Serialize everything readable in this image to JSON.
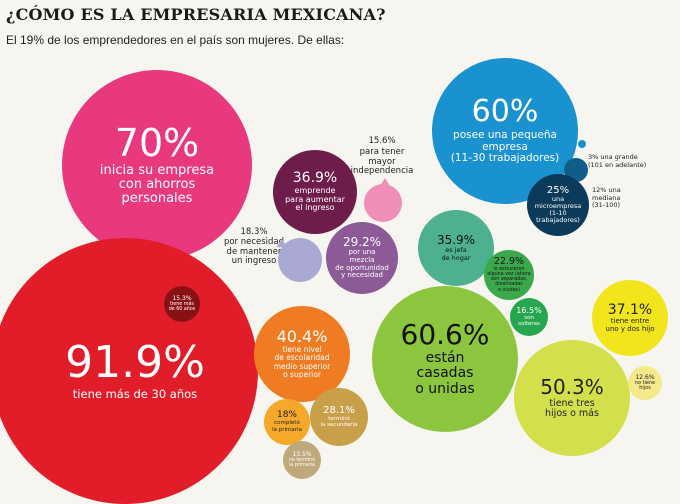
{
  "title": "¿CÓMO ES LA EMPRESARIA MEXICANA?",
  "subtitle": "El 19% de los emprendedores en el país son mujeres. De ellas:",
  "bubbles": {
    "ahorros": {
      "pct": "70%",
      "label": "inicia su empresa\ncon ahorros\npersonales",
      "color": "#e8387e"
    },
    "emprende": {
      "pct": "36.9%",
      "label": "emprende\npara aumentar\nel ingreso",
      "color": "#6e1d4a"
    },
    "independencia": {
      "pct": "15.6%",
      "label": "para tener\nmayor\nindependencia",
      "color": "#ef8fb7"
    },
    "necesidad": {
      "pct": "18.3%",
      "label": "por necesidad\nde mantener\nun ingreso",
      "color": "#a9a8d2"
    },
    "mezcla": {
      "pct": "29.2%",
      "label": "por una\nmezcla\nde oportunidad\ny necesidad",
      "color": "#8b5a97"
    },
    "pequena": {
      "pct": "60%",
      "label": "posee una pequeña\nempresa\n(11-30 trabajadores)",
      "color": "#1992cf"
    },
    "grande": {
      "pct": "3%",
      "label": "3% una grande\n(101 en adelante)",
      "color": "#1d8fc8"
    },
    "mediana": {
      "pct": "12%",
      "label": "12% una\nmediana\n(31-100)",
      "color": "#0f5e8a"
    },
    "micro": {
      "pct": "25%",
      "label": "una\nmicroempresa\n(1-10\ntrabajadores)",
      "color": "#0c3a5a"
    },
    "jefa": {
      "pct": "35.9%",
      "label": "es jefa\nde hogar",
      "color": "#4db18f"
    },
    "separadas": {
      "pct": "22.9%",
      "label": "lo estuvieron\nalguna vez (ahora\nson separadas,\ndivorciadas\no viudas)",
      "color": "#3ca84c"
    },
    "solteras": {
      "pct": "16.5%",
      "label": "son\nsolteras",
      "color": "#27a650"
    },
    "casadas": {
      "pct": "60.6%",
      "label": "están\ncasadas\no unidas",
      "color": "#8cc63f"
    },
    "mayor30": {
      "pct": "91.9%",
      "label": "tiene más de 30 años",
      "color": "#e21d2a"
    },
    "mayor60": {
      "pct": "15.3%",
      "label": "tiene más\nde 60 años",
      "color": "#8a1113"
    },
    "escolaridad": {
      "pct": "40.4%",
      "label": "tiene nivel\nde escolaridad\nmedio superior\no superior",
      "color": "#ef7c22"
    },
    "primaria": {
      "pct": "18%",
      "label": "completó\nla primaria",
      "color": "#f5a82a"
    },
    "secundaria": {
      "pct": "28.1%",
      "label": "terminó\nla secundaria",
      "color": "#c9a04a"
    },
    "noprimaria": {
      "pct": "13.5%",
      "label": "no terminó\nla primaria",
      "color": "#bfa87a"
    },
    "unodos": {
      "pct": "37.1%",
      "label": "tiene entre\nuno y dos hijo",
      "color": "#f2e51c"
    },
    "treshijos": {
      "pct": "50.3%",
      "label": "tiene tres\nhijos o más",
      "color": "#d3e04b"
    },
    "sinhijos": {
      "pct": "12.6%",
      "label": "no tiene\nhijos",
      "color": "#f5ea8a"
    }
  }
}
